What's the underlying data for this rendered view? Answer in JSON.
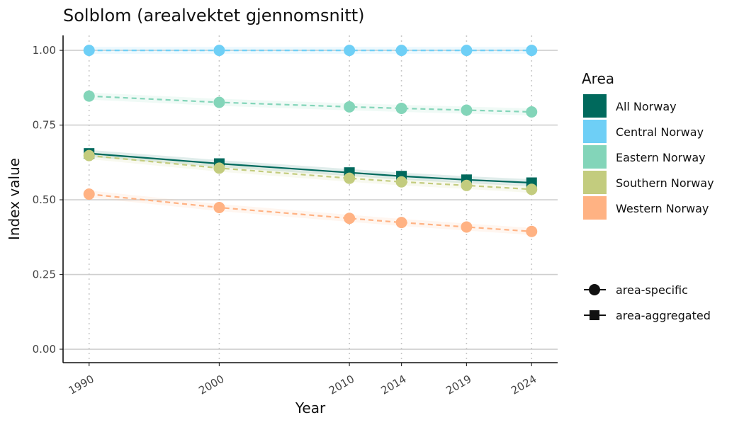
{
  "chart_data": {
    "type": "line",
    "title": "Solblom (arealvektet gjennomsnitt)",
    "xlabel": "Year",
    "ylabel": "Index value",
    "x": [
      1990,
      2000,
      2010,
      2014,
      2019,
      2024
    ],
    "x_ticks": [
      "1990",
      "2000",
      "2010",
      "2014",
      "2019",
      "2024"
    ],
    "y_ticks": [
      "0.00",
      "0.25",
      "0.50",
      "0.75",
      "1.00"
    ],
    "ylim": [
      -0.045,
      1.05
    ],
    "xlim": [
      1988,
      2026
    ],
    "grid": "horizontal major lines, dotted vertical at data years",
    "legend_position": "right",
    "legend_title": "Area",
    "series": [
      {
        "name": "All Norway",
        "color": "#00695C",
        "marker": "square",
        "line": "solid",
        "values": [
          0.655,
          0.621,
          0.591,
          0.579,
          0.567,
          0.557
        ]
      },
      {
        "name": "Central Norway",
        "color": "#6ECFF6",
        "marker": "circle",
        "line": "dashed",
        "values": [
          1.0,
          1.0,
          1.0,
          1.0,
          1.0,
          1.0
        ]
      },
      {
        "name": "Eastern Norway",
        "color": "#83D5B9",
        "marker": "circle",
        "line": "dashed",
        "values": [
          0.847,
          0.826,
          0.811,
          0.806,
          0.8,
          0.794
        ]
      },
      {
        "name": "Southern Norway",
        "color": "#C3CC7E",
        "marker": "circle",
        "line": "dashed",
        "values": [
          0.648,
          0.606,
          0.572,
          0.56,
          0.548,
          0.535
        ]
      },
      {
        "name": "Western Norway",
        "color": "#FFB283",
        "marker": "circle",
        "line": "dashed",
        "values": [
          0.519,
          0.474,
          0.438,
          0.424,
          0.409,
          0.394
        ]
      }
    ],
    "shape_legend": [
      {
        "shape": "circle",
        "label": "area-specific"
      },
      {
        "shape": "square",
        "label": "area-aggregated"
      }
    ]
  }
}
